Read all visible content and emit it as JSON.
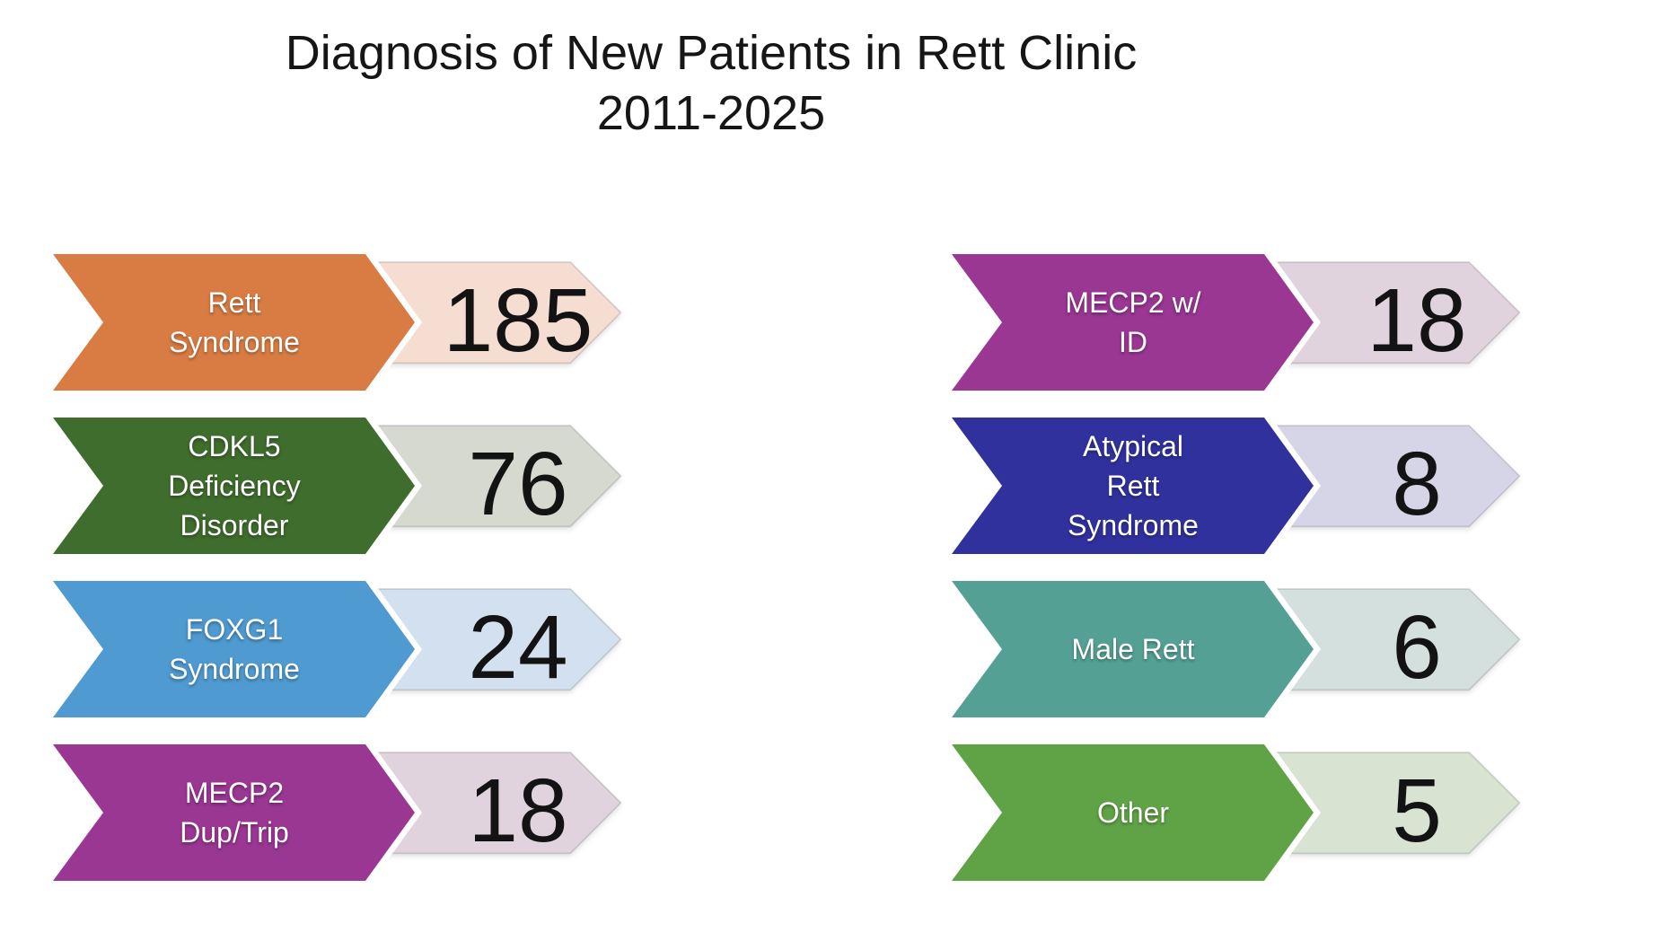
{
  "title": {
    "line1": "Diagnosis of New Patients in Rett Clinic",
    "line2": "2011-2025"
  },
  "chart_data": {
    "type": "bar",
    "title": "Diagnosis of New Patients in Rett Clinic 2011-2025",
    "layout": "two-column chevron arrow list, white background, label chevron in saturated color followed by value chevron in pale tint of same hue",
    "legend": "none",
    "categories": [
      "Rett Syndrome",
      "CDKL5 Deficiency Disorder",
      "FOXG1 Syndrome",
      "MECP2 Dup/Trip",
      "MECP2 w/ ID",
      "Atypical Rett Syndrome",
      "Male Rett",
      "Other"
    ],
    "values": [
      185,
      76,
      24,
      18,
      18,
      8,
      6,
      5
    ],
    "columns": {
      "left": [
        {
          "label": "Rett Syndrome",
          "label_lines": [
            "Rett",
            "Syndrome"
          ],
          "value": "185",
          "color": "#D87C44",
          "light_color": "#F6DDD2"
        },
        {
          "label": "CDKL5 Deficiency Disorder",
          "label_lines": [
            "CDKL5",
            "Deficiency",
            "Disorder"
          ],
          "value": "76",
          "color": "#3F6D2D",
          "light_color": "#D5D9D0"
        },
        {
          "label": "FOXG1 Syndrome",
          "label_lines": [
            "FOXG1",
            "Syndrome"
          ],
          "value": "24",
          "color": "#4E9AD1",
          "light_color": "#D3E0EF"
        },
        {
          "label": "MECP2 Dup/Trip",
          "label_lines": [
            "MECP2",
            "Dup/Trip"
          ],
          "value": "18",
          "color": "#9A3793",
          "light_color": "#E0D3DE"
        }
      ],
      "right": [
        {
          "label": "MECP2 w/ ID",
          "label_lines": [
            "MECP2 w/",
            "ID"
          ],
          "value": "18",
          "color": "#9A3793",
          "light_color": "#E0D3DE"
        },
        {
          "label": "Atypical Rett Syndrome",
          "label_lines": [
            "Atypical",
            "Rett",
            "Syndrome"
          ],
          "value": "8",
          "color": "#31319E",
          "light_color": "#D6D5E8"
        },
        {
          "label": "Male Rett",
          "label_lines": [
            "Male Rett"
          ],
          "value": "6",
          "color": "#55A095",
          "light_color": "#D4E0DD"
        },
        {
          "label": "Other",
          "label_lines": [
            "Other"
          ],
          "value": "5",
          "color": "#60A347",
          "light_color": "#D9E3D2"
        }
      ]
    }
  },
  "shapes": {
    "label_chevron_points": "0,0 348,0 403,76 348,152 0,152 56,76",
    "value_chevron_points": "0,0 271,0 338,67 271,134 0,134 62,67",
    "outline_color": "#ffffff",
    "value_edge_color": "rgba(110,110,110,0.25)"
  }
}
